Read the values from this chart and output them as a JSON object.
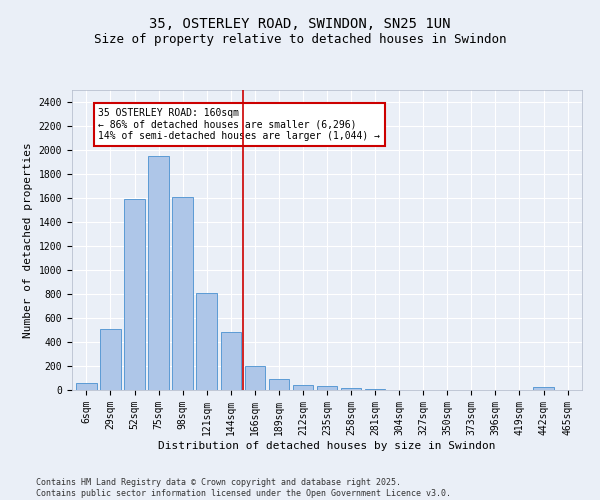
{
  "title": "35, OSTERLEY ROAD, SWINDON, SN25 1UN",
  "subtitle": "Size of property relative to detached houses in Swindon",
  "xlabel": "Distribution of detached houses by size in Swindon",
  "ylabel": "Number of detached properties",
  "categories": [
    "6sqm",
    "29sqm",
    "52sqm",
    "75sqm",
    "98sqm",
    "121sqm",
    "144sqm",
    "166sqm",
    "189sqm",
    "212sqm",
    "235sqm",
    "258sqm",
    "281sqm",
    "304sqm",
    "327sqm",
    "350sqm",
    "373sqm",
    "396sqm",
    "419sqm",
    "442sqm",
    "465sqm"
  ],
  "values": [
    60,
    510,
    1590,
    1950,
    1610,
    810,
    480,
    200,
    95,
    45,
    30,
    15,
    10,
    0,
    0,
    0,
    0,
    0,
    0,
    25,
    0
  ],
  "bar_color": "#aec6e8",
  "bar_edge_color": "#5b9bd5",
  "vline_x_index": 6.5,
  "vline_color": "#cc0000",
  "annotation_text": "35 OSTERLEY ROAD: 160sqm\n← 86% of detached houses are smaller (6,296)\n14% of semi-detached houses are larger (1,044) →",
  "annotation_box_color": "#cc0000",
  "ylim": [
    0,
    2500
  ],
  "yticks": [
    0,
    200,
    400,
    600,
    800,
    1000,
    1200,
    1400,
    1600,
    1800,
    2000,
    2200,
    2400
  ],
  "footer_line1": "Contains HM Land Registry data © Crown copyright and database right 2025.",
  "footer_line2": "Contains public sector information licensed under the Open Government Licence v3.0.",
  "background_color": "#eaeff7",
  "plot_bg_color": "#eaeff7",
  "grid_color": "#ffffff",
  "title_fontsize": 10,
  "subtitle_fontsize": 9,
  "tick_fontsize": 7,
  "label_fontsize": 8,
  "footer_fontsize": 6
}
